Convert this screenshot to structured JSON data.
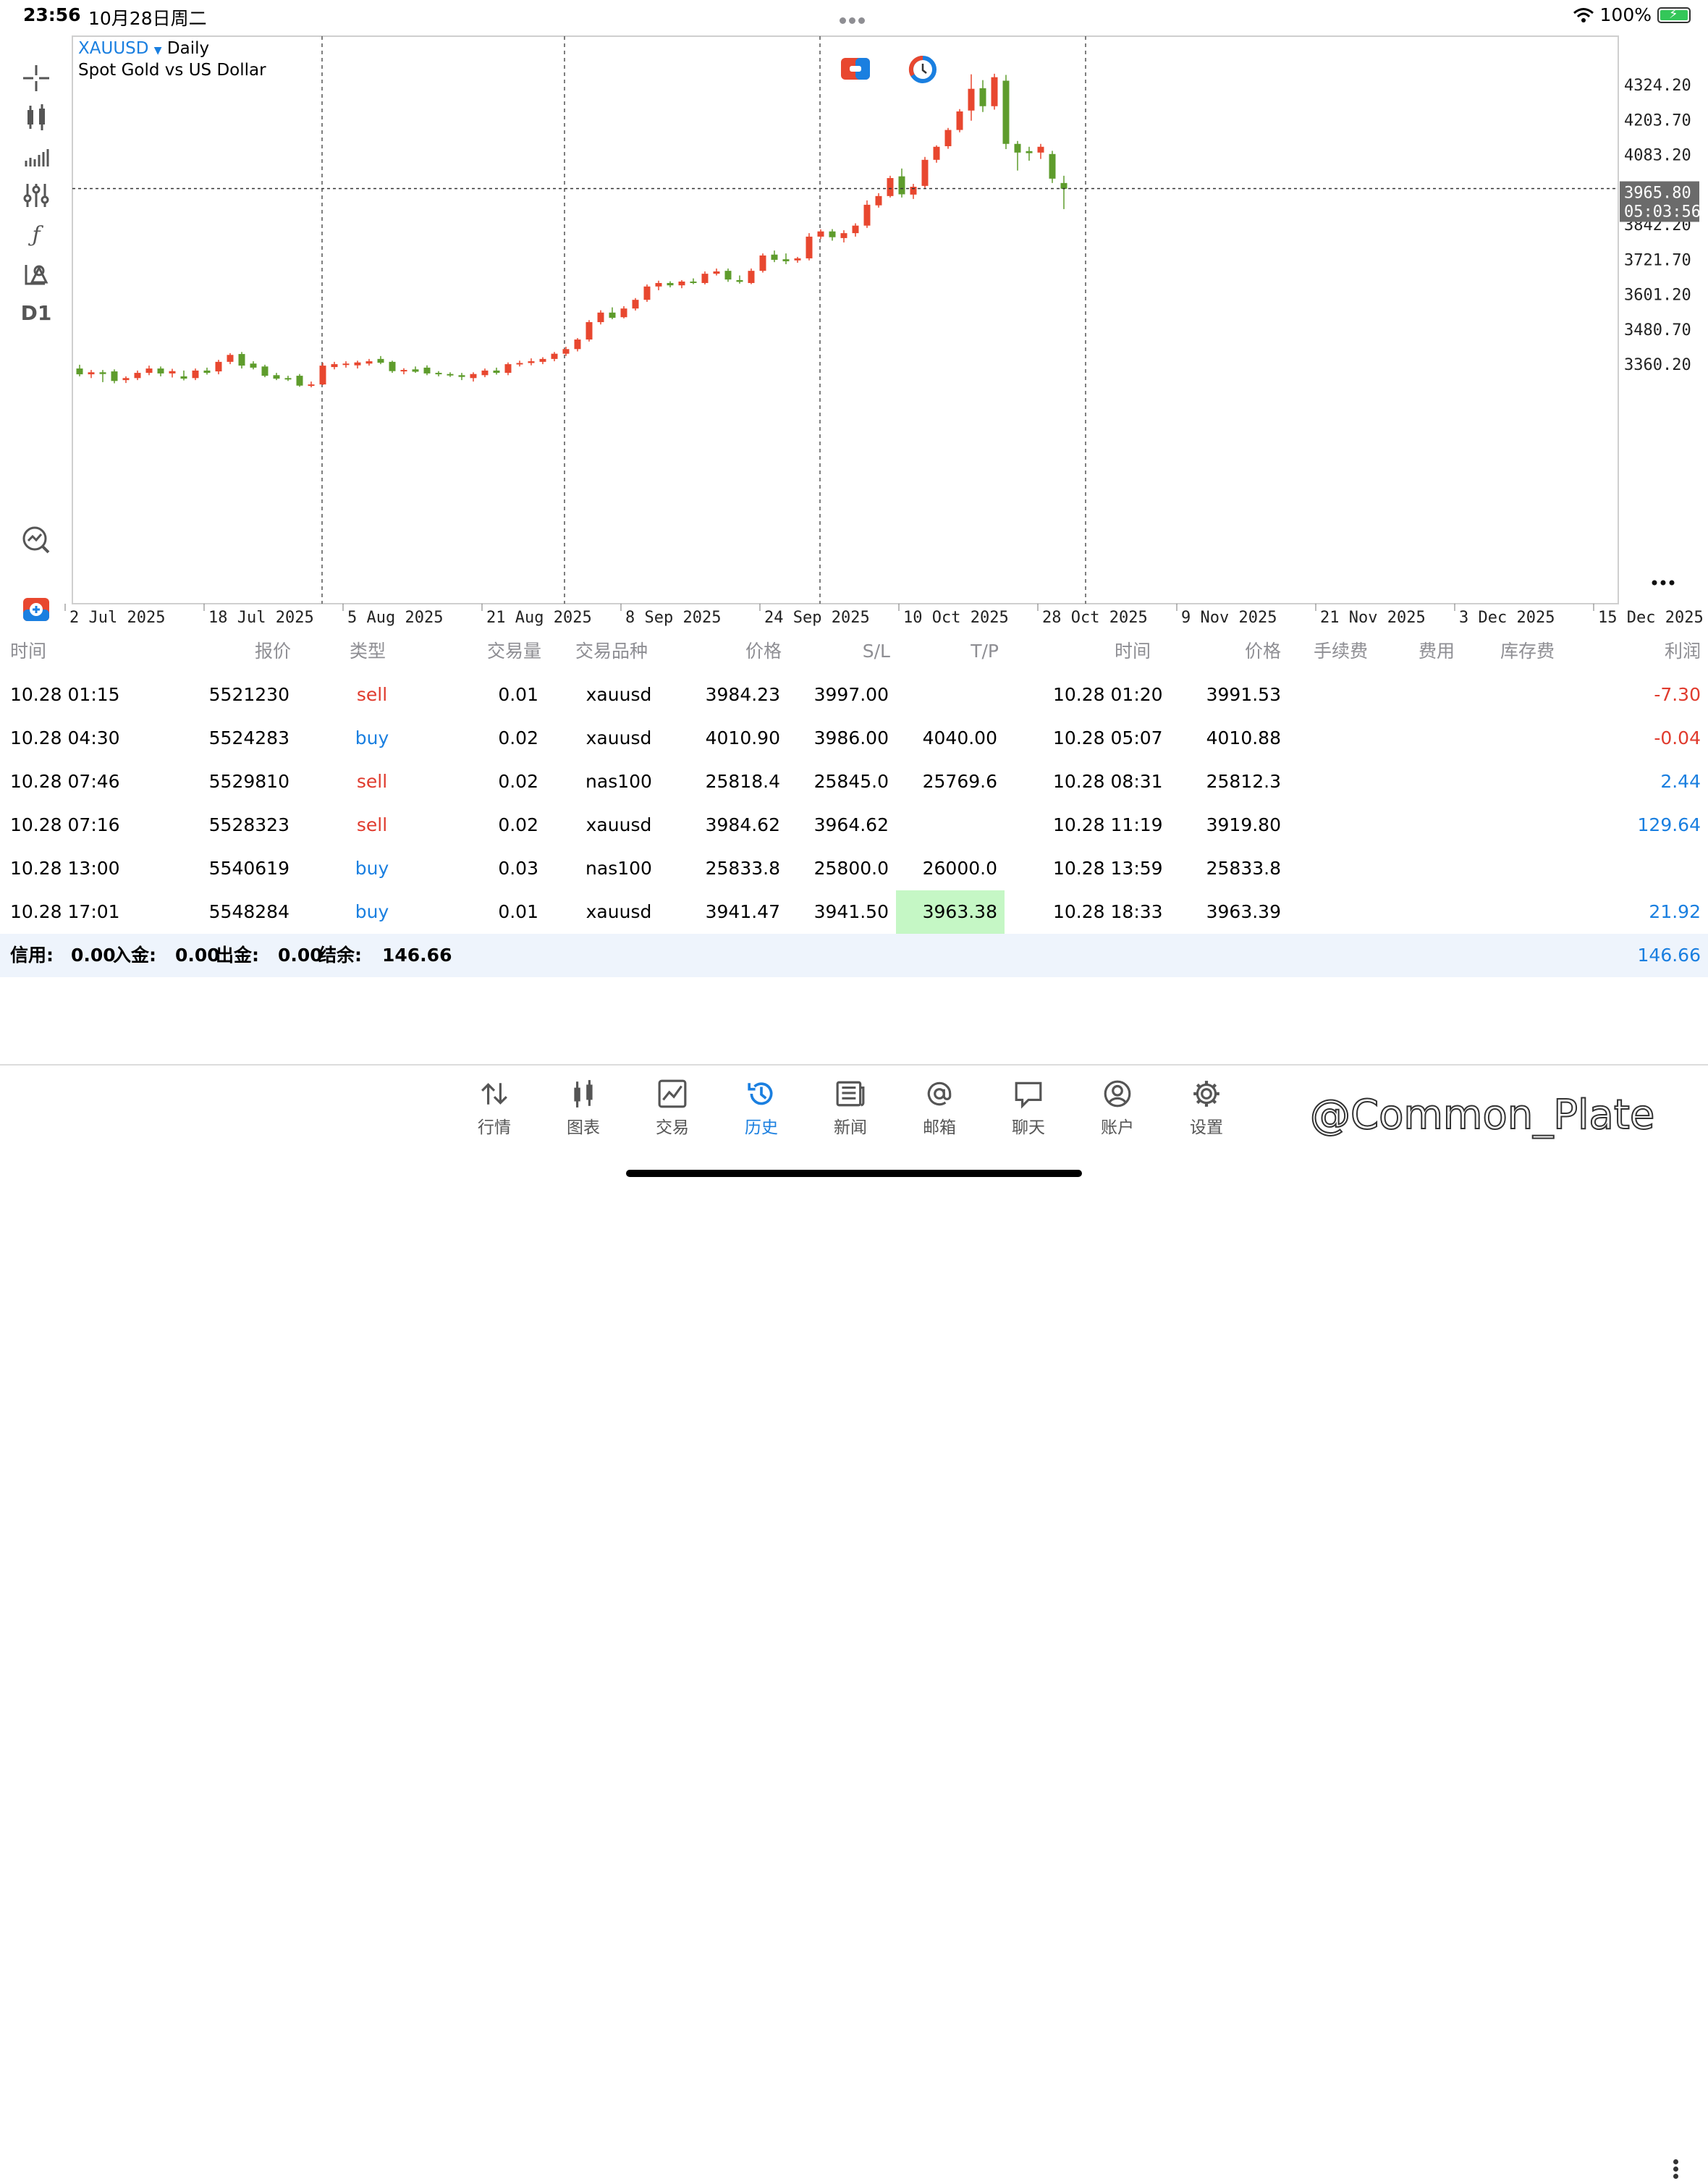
{
  "status_bar": {
    "time": "23:56",
    "date": "10月28日周二",
    "battery": "100%"
  },
  "chart": {
    "symbol": "XAUUSD",
    "timeframe": "Daily",
    "description": "Spot Gold vs US Dollar",
    "tool_d1": "D1",
    "current_price": "3965.80",
    "countdown": "05:03:56"
  },
  "chart_data": {
    "type": "candlestick",
    "symbol": "XAUUSD",
    "y_ticks": [
      "4324.20",
      "4203.70",
      "4083.20",
      "3842.20",
      "3721.70",
      "3601.20",
      "3480.70",
      "3360.20"
    ],
    "y_tick_values": [
      4324.2,
      4203.7,
      4083.2,
      3842.2,
      3721.7,
      3601.2,
      3480.7,
      3360.2
    ],
    "x_ticks": [
      "2 Jul 2025",
      "18 Jul 2025",
      "5 Aug 2025",
      "21 Aug 2025",
      "8 Sep 2025",
      "24 Sep 2025",
      "10 Oct 2025",
      "28 Oct 2025",
      "9 Nov 2025",
      "21 Nov 2025",
      "3 Dec 2025",
      "15 Dec 2025"
    ],
    "crosshair_price": 3965.8,
    "candles": [
      [
        3345,
        3358,
        3318,
        3325
      ],
      [
        3325,
        3340,
        3312,
        3332
      ],
      [
        3332,
        3340,
        3298,
        3326
      ],
      [
        3335,
        3342,
        3294,
        3302
      ],
      [
        3305,
        3318,
        3295,
        3312
      ],
      [
        3312,
        3338,
        3305,
        3330
      ],
      [
        3330,
        3355,
        3322,
        3345
      ],
      [
        3345,
        3352,
        3318,
        3328
      ],
      [
        3328,
        3344,
        3314,
        3336
      ],
      [
        3318,
        3338,
        3304,
        3310
      ],
      [
        3312,
        3345,
        3305,
        3338
      ],
      [
        3338,
        3348,
        3324,
        3330
      ],
      [
        3335,
        3375,
        3325,
        3368
      ],
      [
        3368,
        3398,
        3360,
        3392
      ],
      [
        3395,
        3402,
        3345,
        3355
      ],
      [
        3362,
        3370,
        3342,
        3348
      ],
      [
        3352,
        3358,
        3315,
        3320
      ],
      [
        3322,
        3330,
        3305,
        3310
      ],
      [
        3312,
        3320,
        3302,
        3308
      ],
      [
        3320,
        3326,
        3282,
        3286
      ],
      [
        3290,
        3300,
        3280,
        3290
      ],
      [
        3290,
        3365,
        3288,
        3355
      ],
      [
        3350,
        3368,
        3342,
        3360
      ],
      [
        3358,
        3370,
        3348,
        3362
      ],
      [
        3356,
        3372,
        3345,
        3366
      ],
      [
        3362,
        3378,
        3355,
        3370
      ],
      [
        3378,
        3388,
        3360,
        3365
      ],
      [
        3368,
        3372,
        3330,
        3336
      ],
      [
        3336,
        3346,
        3325,
        3340
      ],
      [
        3342,
        3352,
        3330,
        3334
      ],
      [
        3348,
        3356,
        3322,
        3328
      ],
      [
        3330,
        3336,
        3318,
        3326
      ],
      [
        3326,
        3332,
        3316,
        3322
      ],
      [
        3322,
        3330,
        3305,
        3316
      ],
      [
        3312,
        3332,
        3300,
        3326
      ],
      [
        3322,
        3345,
        3315,
        3338
      ],
      [
        3338,
        3348,
        3324,
        3330
      ],
      [
        3330,
        3366,
        3322,
        3360
      ],
      [
        3360,
        3372,
        3352,
        3364
      ],
      [
        3364,
        3380,
        3356,
        3370
      ],
      [
        3368,
        3384,
        3360,
        3378
      ],
      [
        3378,
        3402,
        3370,
        3396
      ],
      [
        3396,
        3420,
        3388,
        3412
      ],
      [
        3412,
        3450,
        3404,
        3445
      ],
      [
        3445,
        3512,
        3438,
        3505
      ],
      [
        3505,
        3546,
        3497,
        3538
      ],
      [
        3538,
        3556,
        3515,
        3520
      ],
      [
        3522,
        3560,
        3518,
        3552
      ],
      [
        3552,
        3588,
        3545,
        3582
      ],
      [
        3582,
        3635,
        3575,
        3628
      ],
      [
        3628,
        3648,
        3615,
        3640
      ],
      [
        3640,
        3646,
        3625,
        3632
      ],
      [
        3632,
        3650,
        3622,
        3645
      ],
      [
        3645,
        3656,
        3636,
        3640
      ],
      [
        3640,
        3680,
        3635,
        3672
      ],
      [
        3672,
        3690,
        3666,
        3680
      ],
      [
        3682,
        3690,
        3644,
        3652
      ],
      [
        3650,
        3666,
        3638,
        3644
      ],
      [
        3640,
        3690,
        3636,
        3682
      ],
      [
        3682,
        3742,
        3676,
        3735
      ],
      [
        3738,
        3752,
        3712,
        3720
      ],
      [
        3722,
        3742,
        3705,
        3715
      ],
      [
        3718,
        3730,
        3710,
        3725
      ],
      [
        3725,
        3812,
        3718,
        3800
      ],
      [
        3800,
        3825,
        3792,
        3818
      ],
      [
        3818,
        3826,
        3786,
        3798
      ],
      [
        3795,
        3822,
        3780,
        3812
      ],
      [
        3812,
        3846,
        3800,
        3838
      ],
      [
        3838,
        3925,
        3830,
        3910
      ],
      [
        3908,
        3950,
        3900,
        3940
      ],
      [
        3940,
        4010,
        3935,
        4002
      ],
      [
        4008,
        4035,
        3935,
        3946
      ],
      [
        3945,
        3982,
        3930,
        3972
      ],
      [
        3975,
        4075,
        3968,
        4065
      ],
      [
        4065,
        4115,
        4055,
        4110
      ],
      [
        4112,
        4175,
        4103,
        4168
      ],
      [
        4168,
        4240,
        4160,
        4232
      ],
      [
        4235,
        4360,
        4200,
        4310
      ],
      [
        4312,
        4340,
        4230,
        4250
      ],
      [
        4250,
        4362,
        4238,
        4350
      ],
      [
        4338,
        4358,
        4102,
        4120
      ],
      [
        4120,
        4130,
        4028,
        4090
      ],
      [
        4095,
        4110,
        4062,
        4088
      ],
      [
        4090,
        4120,
        4068,
        4110
      ],
      [
        4085,
        4096,
        3985,
        4000
      ],
      [
        3985,
        4010,
        3895,
        3965
      ]
    ]
  },
  "table": {
    "headers": [
      "时间",
      "报价",
      "类型",
      "交易量",
      "交易品种",
      "价格",
      "S/L",
      "T/P",
      "时间",
      "价格",
      "手续费",
      "费用",
      "库存费",
      "利润"
    ],
    "rows": [
      {
        "open_time": "10.28 01:15",
        "ticket": "5521230",
        "type": "sell",
        "volume": "0.01",
        "symbol": "xauusd",
        "price": "3984.23",
        "sl": "3997.00",
        "tp": "",
        "close_time": "10.28 01:20",
        "close_price": "3991.53",
        "commission": "",
        "fee": "",
        "swap": "",
        "profit": "-7.30",
        "profit_sign": "neg"
      },
      {
        "open_time": "10.28 04:30",
        "ticket": "5524283",
        "type": "buy",
        "volume": "0.02",
        "symbol": "xauusd",
        "price": "4010.90",
        "sl": "3986.00",
        "tp": "4040.00",
        "close_time": "10.28 05:07",
        "close_price": "4010.88",
        "commission": "",
        "fee": "",
        "swap": "",
        "profit": "-0.04",
        "profit_sign": "neg"
      },
      {
        "open_time": "10.28 07:46",
        "ticket": "5529810",
        "type": "sell",
        "volume": "0.02",
        "symbol": "nas100",
        "price": "25818.4",
        "sl": "25845.0",
        "tp": "25769.6",
        "close_time": "10.28 08:31",
        "close_price": "25812.3",
        "commission": "",
        "fee": "",
        "swap": "",
        "profit": "2.44",
        "profit_sign": "pos"
      },
      {
        "open_time": "10.28 07:16",
        "ticket": "5528323",
        "type": "sell",
        "volume": "0.02",
        "symbol": "xauusd",
        "price": "3984.62",
        "sl": "3964.62",
        "tp": "",
        "close_time": "10.28 11:19",
        "close_price": "3919.80",
        "commission": "",
        "fee": "",
        "swap": "",
        "profit": "129.64",
        "profit_sign": "pos"
      },
      {
        "open_time": "10.28 13:00",
        "ticket": "5540619",
        "type": "buy",
        "volume": "0.03",
        "symbol": "nas100",
        "price": "25833.8",
        "sl": "25800.0",
        "tp": "26000.0",
        "close_time": "10.28 13:59",
        "close_price": "25833.8",
        "commission": "",
        "fee": "",
        "swap": "",
        "profit": "",
        "profit_sign": "pos"
      },
      {
        "open_time": "10.28 17:01",
        "ticket": "5548284",
        "type": "buy",
        "volume": "0.01",
        "symbol": "xauusd",
        "price": "3941.47",
        "sl": "3941.50",
        "tp": "3963.38",
        "close_time": "10.28 18:33",
        "close_price": "3963.39",
        "commission": "",
        "fee": "",
        "swap": "",
        "profit": "21.92",
        "profit_sign": "pos",
        "tp_highlight": "#c5f7c5"
      }
    ],
    "summary": {
      "credit_label": "信用:",
      "credit": "0.00",
      "deposit_label": "入金:",
      "deposit": "0.00",
      "withdraw_label": "出金:",
      "withdraw": "0.00",
      "balance_label": "结余:",
      "balance": "146.66",
      "total": "146.66"
    }
  },
  "bottom_tabs": [
    {
      "label": "行情",
      "icon": "quotes-arrows-icon"
    },
    {
      "label": "图表",
      "icon": "candlestick-chart-icon"
    },
    {
      "label": "交易",
      "icon": "trade-chart-icon"
    },
    {
      "label": "历史",
      "icon": "history-clock-icon",
      "active": true
    },
    {
      "label": "新闻",
      "icon": "news-icon"
    },
    {
      "label": "邮箱",
      "icon": "mail-at-icon"
    },
    {
      "label": "聊天",
      "icon": "chat-bubble-icon"
    },
    {
      "label": "账户",
      "icon": "account-icon"
    },
    {
      "label": "设置",
      "icon": "settings-gear-icon"
    }
  ],
  "watermark": "@Common_Plate",
  "colors": {
    "accent": "#1a7fe0",
    "bull": "#e8472f",
    "bear": "#5e9c2c",
    "tp_highlight": "#c5f7c5"
  }
}
